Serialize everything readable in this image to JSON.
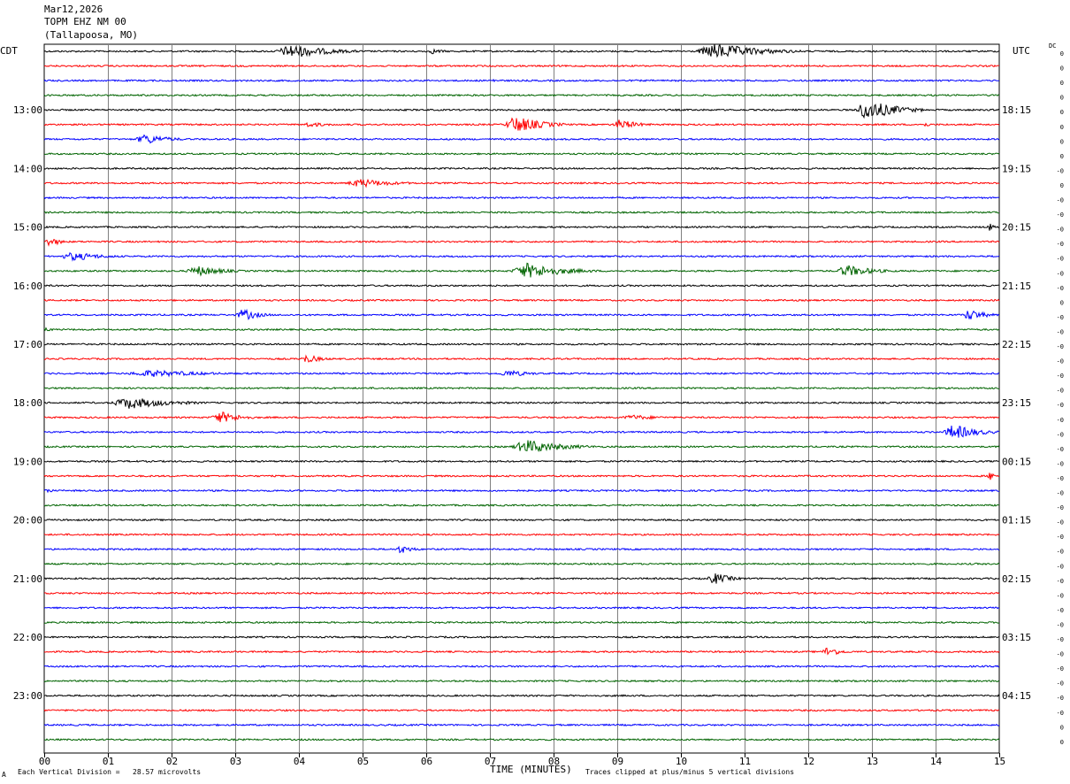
{
  "header": {
    "date": "Mar12,2026",
    "station": "TOPM EHZ NM 00",
    "location": "(Tallapoosa, MO)"
  },
  "left_tz": "CDT",
  "right_tz": "UTC",
  "dc_label": "DC",
  "footer": {
    "scale": "Each Vertical Division =   28.57 microvolts",
    "xlabel": "TIME (MINUTES)",
    "clip_note": "Traces clipped at plus/minus 5 vertical divisions",
    "corner_mark": "A"
  },
  "chart_data": {
    "type": "line",
    "title": "TOPM EHZ NM 00",
    "xlabel": "TIME (MINUTES)",
    "x_range": [
      0,
      15
    ],
    "x_ticks": [
      "00",
      "01",
      "02",
      "03",
      "04",
      "05",
      "06",
      "07",
      "08",
      "09",
      "10",
      "11",
      "12",
      "13",
      "14",
      "15"
    ],
    "trace_count": 48,
    "trace_colors": [
      "#000000",
      "#ff0000",
      "#0000ff",
      "#006400"
    ],
    "left_labels": [
      {
        "trace": 4,
        "text": "13:00"
      },
      {
        "trace": 8,
        "text": "14:00"
      },
      {
        "trace": 12,
        "text": "15:00"
      },
      {
        "trace": 16,
        "text": "16:00"
      },
      {
        "trace": 20,
        "text": "17:00"
      },
      {
        "trace": 24,
        "text": "18:00"
      },
      {
        "trace": 28,
        "text": "19:00"
      },
      {
        "trace": 32,
        "text": "20:00"
      },
      {
        "trace": 36,
        "text": "21:00"
      },
      {
        "trace": 40,
        "text": "22:00"
      },
      {
        "trace": 44,
        "text": "23:00"
      }
    ],
    "right_labels": [
      {
        "trace": 4,
        "text": "18:15"
      },
      {
        "trace": 8,
        "text": "19:15"
      },
      {
        "trace": 12,
        "text": "20:15"
      },
      {
        "trace": 16,
        "text": "21:15"
      },
      {
        "trace": 20,
        "text": "22:15"
      },
      {
        "trace": 24,
        "text": "23:15"
      },
      {
        "trace": 28,
        "text": "00:15"
      },
      {
        "trace": 32,
        "text": "01:15"
      },
      {
        "trace": 36,
        "text": "02:15"
      },
      {
        "trace": 40,
        "text": "03:15"
      },
      {
        "trace": 44,
        "text": "04:15"
      }
    ],
    "dc_offsets": [
      "0",
      "0",
      "0",
      "0",
      "0",
      "0",
      "0",
      "0",
      "-0",
      "0",
      "-0",
      "-0",
      "-0",
      "-0",
      "-0",
      "-0",
      "-0",
      "0",
      "-0",
      "-0",
      "-0",
      "-0",
      "-0",
      "-0",
      "-0",
      "-0",
      "-0",
      "-0",
      "-0",
      "-0",
      "-0",
      "-0",
      "-0",
      "-0",
      "-0",
      "-0",
      "-0",
      "-0",
      "-0",
      "-0",
      "-0",
      "-0",
      "-0",
      "-0",
      "-0",
      "-0",
      "0",
      "0"
    ],
    "events": [
      {
        "trace": 0,
        "start": 3.6,
        "end": 5.0,
        "amp": 8
      },
      {
        "trace": 0,
        "start": 6.0,
        "end": 6.5,
        "amp": 3
      },
      {
        "trace": 0,
        "start": 10.2,
        "end": 11.9,
        "amp": 9
      },
      {
        "trace": 2,
        "start": 7.0,
        "end": 7.3,
        "amp": 2
      },
      {
        "trace": 4,
        "start": 12.7,
        "end": 13.8,
        "amp": 12
      },
      {
        "trace": 5,
        "start": 4.0,
        "end": 4.8,
        "amp": 3
      },
      {
        "trace": 5,
        "start": 7.2,
        "end": 8.2,
        "amp": 10
      },
      {
        "trace": 5,
        "start": 8.9,
        "end": 9.6,
        "amp": 6
      },
      {
        "trace": 5,
        "start": 13.8,
        "end": 14.0,
        "amp": 3
      },
      {
        "trace": 6,
        "start": 1.4,
        "end": 2.3,
        "amp": 6
      },
      {
        "trace": 9,
        "start": 4.7,
        "end": 6.0,
        "amp": 5
      },
      {
        "trace": 12,
        "start": 14.8,
        "end": 15.0,
        "amp": 5
      },
      {
        "trace": 13,
        "start": 0.0,
        "end": 0.4,
        "amp": 6
      },
      {
        "trace": 14,
        "start": 0.2,
        "end": 1.4,
        "amp": 5
      },
      {
        "trace": 15,
        "start": 2.2,
        "end": 3.2,
        "amp": 6
      },
      {
        "trace": 15,
        "start": 7.3,
        "end": 8.7,
        "amp": 9
      },
      {
        "trace": 15,
        "start": 12.4,
        "end": 13.4,
        "amp": 7
      },
      {
        "trace": 18,
        "start": 3.0,
        "end": 3.6,
        "amp": 7
      },
      {
        "trace": 18,
        "start": 11.0,
        "end": 11.5,
        "amp": 2
      },
      {
        "trace": 18,
        "start": 14.4,
        "end": 15.0,
        "amp": 7
      },
      {
        "trace": 19,
        "start": 0.0,
        "end": 0.2,
        "amp": 3
      },
      {
        "trace": 21,
        "start": 4.0,
        "end": 4.6,
        "amp": 5
      },
      {
        "trace": 22,
        "start": 1.2,
        "end": 3.5,
        "amp": 4
      },
      {
        "trace": 22,
        "start": 7.1,
        "end": 8.0,
        "amp": 4
      },
      {
        "trace": 24,
        "start": 1.0,
        "end": 2.6,
        "amp": 7
      },
      {
        "trace": 25,
        "start": 2.6,
        "end": 3.4,
        "amp": 7
      },
      {
        "trace": 25,
        "start": 9.0,
        "end": 10.2,
        "amp": 3
      },
      {
        "trace": 26,
        "start": 14.1,
        "end": 15.0,
        "amp": 9
      },
      {
        "trace": 27,
        "start": 7.3,
        "end": 8.7,
        "amp": 8
      },
      {
        "trace": 29,
        "start": 14.8,
        "end": 15.0,
        "amp": 6
      },
      {
        "trace": 30,
        "start": 0.0,
        "end": 0.2,
        "amp": 4
      },
      {
        "trace": 34,
        "start": 5.5,
        "end": 6.0,
        "amp": 5
      },
      {
        "trace": 36,
        "start": 10.4,
        "end": 11.0,
        "amp": 7
      },
      {
        "trace": 41,
        "start": 12.2,
        "end": 12.7,
        "amp": 6
      }
    ]
  }
}
